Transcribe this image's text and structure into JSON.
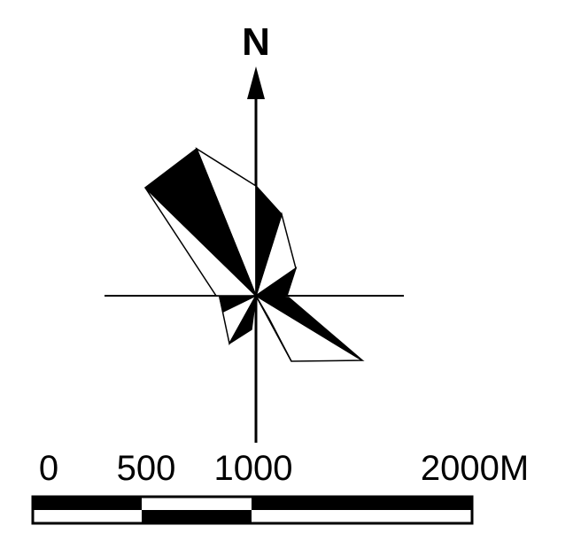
{
  "compass": {
    "north_label": "N"
  },
  "scale_bar": {
    "labels": [
      "0",
      "500",
      "1000",
      "2000M"
    ]
  },
  "colors": {
    "ink": "#000000",
    "paper": "#ffffff"
  }
}
